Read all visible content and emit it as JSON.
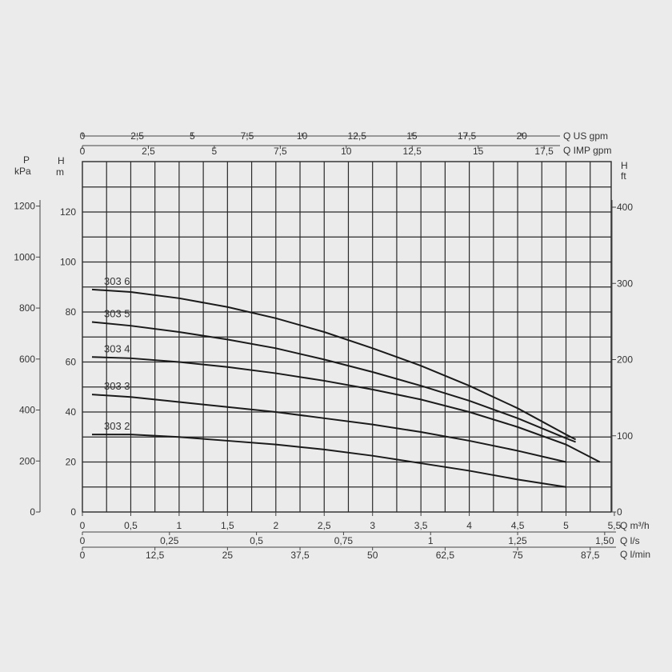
{
  "chart_data": {
    "type": "line",
    "x": {
      "label": "Q m³/h",
      "min": 0,
      "max": 5.5,
      "ticks": [
        "0",
        "0,5",
        "1",
        "1,5",
        "2",
        "2,5",
        "3",
        "3,5",
        "4",
        "4,5",
        "5",
        "5,5"
      ],
      "tick_values": [
        0,
        0.5,
        1,
        1.5,
        2,
        2.5,
        3,
        3.5,
        4,
        4.5,
        5,
        5.5
      ]
    },
    "y": {
      "label_line1": "H",
      "label_line2": "m",
      "min": 0,
      "max": 140,
      "ticks": [
        "0",
        "20",
        "40",
        "60",
        "80",
        "100",
        "120"
      ],
      "tick_values": [
        0,
        20,
        40,
        60,
        80,
        100,
        120
      ]
    },
    "secondary_axes": {
      "top1": {
        "label": "Q US gpm",
        "ticks": [
          "0",
          "2,5",
          "5",
          "7,5",
          "10",
          "12,5",
          "15",
          "17,5",
          "20"
        ],
        "values": [
          0,
          2.5,
          5,
          7.5,
          10,
          12.5,
          15,
          17.5,
          20
        ]
      },
      "top2": {
        "label": "Q IMP gpm",
        "ticks": [
          "0",
          "2,5",
          "5",
          "7,5",
          "10",
          "12,5",
          "15",
          "17,5"
        ],
        "values": [
          0,
          2.5,
          5,
          7.5,
          10,
          12.5,
          15,
          17.5
        ]
      },
      "bottom2": {
        "label": "Q l/s",
        "ticks": [
          "0",
          "0,25",
          "0,5",
          "0,75",
          "1",
          "1,25",
          "1,50"
        ],
        "values": [
          0,
          0.25,
          0.5,
          0.75,
          1,
          1.25,
          1.5
        ]
      },
      "bottom3": {
        "label": "Q l/min",
        "ticks": [
          "0",
          "12,5",
          "25",
          "37,5",
          "50",
          "62,5",
          "75",
          "87,5"
        ],
        "values": [
          0,
          12.5,
          25,
          37.5,
          50,
          62.5,
          75,
          87.5
        ]
      },
      "left_p": {
        "label_line1": "P",
        "label_line2": "kPa",
        "ticks": [
          "0",
          "200",
          "400",
          "600",
          "800",
          "1000",
          "1200"
        ],
        "values": [
          0,
          200,
          400,
          600,
          800,
          1000,
          1200
        ]
      },
      "right_ft": {
        "label_line1": "H",
        "label_line2": "ft",
        "ticks": [
          "0",
          "100",
          "200",
          "300",
          "400"
        ],
        "values": [
          0,
          100,
          200,
          300,
          400
        ]
      }
    },
    "grid": true,
    "series": [
      {
        "name": "303 6",
        "points": [
          [
            0,
            89
          ],
          [
            0.5,
            88
          ],
          [
            1,
            85.5
          ],
          [
            1.5,
            82
          ],
          [
            2,
            77.5
          ],
          [
            2.5,
            72
          ],
          [
            3,
            65.5
          ],
          [
            3.5,
            58.5
          ],
          [
            4,
            50.5
          ],
          [
            4.5,
            41.5
          ],
          [
            5,
            31
          ],
          [
            5.1,
            29
          ]
        ]
      },
      {
        "name": "303 5",
        "points": [
          [
            0,
            76
          ],
          [
            0.5,
            74.5
          ],
          [
            1,
            72
          ],
          [
            1.5,
            69
          ],
          [
            2,
            65.5
          ],
          [
            2.5,
            61
          ],
          [
            3,
            56
          ],
          [
            3.5,
            50.5
          ],
          [
            4,
            44.5
          ],
          [
            4.5,
            37.5
          ],
          [
            5,
            29.5
          ],
          [
            5.1,
            28
          ]
        ]
      },
      {
        "name": "303 4",
        "points": [
          [
            0,
            62
          ],
          [
            0.5,
            61.5
          ],
          [
            1,
            60
          ],
          [
            1.5,
            58
          ],
          [
            2,
            55.5
          ],
          [
            2.5,
            52.5
          ],
          [
            3,
            49
          ],
          [
            3.5,
            45
          ],
          [
            4,
            40
          ],
          [
            4.5,
            34
          ],
          [
            5,
            27
          ],
          [
            5.35,
            20
          ]
        ]
      },
      {
        "name": "303 3",
        "points": [
          [
            0,
            47
          ],
          [
            0.5,
            46
          ],
          [
            1,
            44
          ],
          [
            1.5,
            42
          ],
          [
            2,
            40
          ],
          [
            2.5,
            37.5
          ],
          [
            3,
            35
          ],
          [
            3.5,
            32
          ],
          [
            4,
            28.5
          ],
          [
            4.5,
            24.5
          ],
          [
            5,
            20
          ]
        ]
      },
      {
        "name": "303 2",
        "points": [
          [
            0,
            31
          ],
          [
            0.5,
            31
          ],
          [
            1,
            30
          ],
          [
            1.5,
            28.5
          ],
          [
            2,
            27
          ],
          [
            2.5,
            25
          ],
          [
            3,
            22.5
          ],
          [
            3.5,
            19.5
          ],
          [
            4,
            16.5
          ],
          [
            4.5,
            13
          ],
          [
            5,
            10
          ]
        ]
      }
    ]
  }
}
